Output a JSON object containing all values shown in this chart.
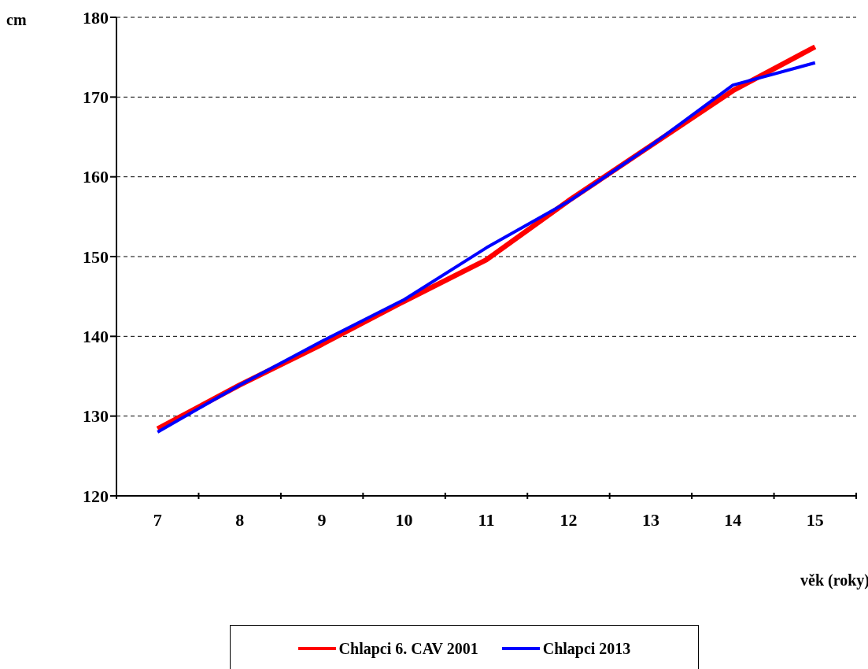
{
  "chart_data": {
    "type": "line",
    "xlabel": "věk (roky)",
    "ylabel": "cm",
    "categories": [
      "7",
      "8",
      "9",
      "10",
      "11",
      "12",
      "13",
      "14",
      "15"
    ],
    "series": [
      {
        "name": "Chlapci 6. CAV 2001",
        "color": "#ff0000",
        "values": [
          128.4,
          133.9,
          139.0,
          144.4,
          149.6,
          157.0,
          163.9,
          170.8,
          176.3
        ]
      },
      {
        "name": "Chlapci 2013",
        "color": "#0000ff",
        "values": [
          128.0,
          133.9,
          139.4,
          144.6,
          151.1,
          156.9,
          163.9,
          171.5,
          174.3
        ]
      }
    ],
    "ylim": [
      120,
      180
    ],
    "yticks": [
      120,
      130,
      140,
      150,
      160,
      170,
      180
    ],
    "grid": "y",
    "legend": "bottom",
    "marker": "none",
    "line_style": "solid"
  }
}
